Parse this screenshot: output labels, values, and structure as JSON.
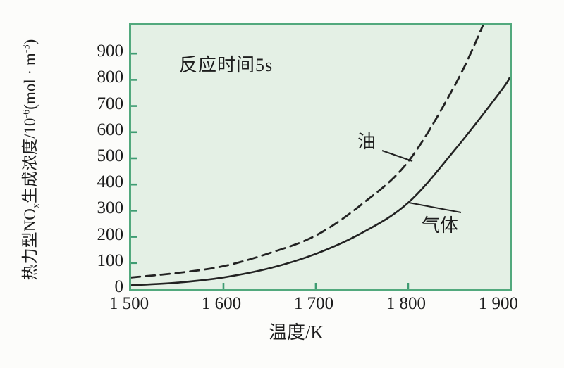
{
  "chart_data": {
    "type": "line",
    "title": "",
    "annotation": "反应时间5s",
    "xlabel": "温度/K",
    "ylabel": "热力型NOx生成浓度/10-6(mol·m-3)",
    "ylabel_parts": [
      {
        "t": "text",
        "v": "热力型NO"
      },
      {
        "t": "sub",
        "v": "x"
      },
      {
        "t": "text",
        "v": "生成浓度/10"
      },
      {
        "t": "sup",
        "v": "-6"
      },
      {
        "t": "text",
        "v": "(mol · m"
      },
      {
        "t": "sup",
        "v": "-3"
      },
      {
        "t": "text",
        "v": ")"
      }
    ],
    "x_axis": {
      "min": 1500,
      "max": 1910,
      "ticks": [
        {
          "value": 1500,
          "label": "1 500"
        },
        {
          "value": 1600,
          "label": "1 600"
        },
        {
          "value": 1700,
          "label": "1 700"
        },
        {
          "value": 1800,
          "label": "1 800"
        },
        {
          "value": 1900,
          "label": "1 900"
        }
      ],
      "tick_marks": [
        1600,
        1700,
        1800
      ]
    },
    "y_axis": {
      "min": 0,
      "max": 1008,
      "ticks": [
        {
          "value": 0,
          "label": "0"
        },
        {
          "value": 100,
          "label": "100"
        },
        {
          "value": 200,
          "label": "200"
        },
        {
          "value": 300,
          "label": "300"
        },
        {
          "value": 400,
          "label": "400"
        },
        {
          "value": 500,
          "label": "500"
        },
        {
          "value": 600,
          "label": "600"
        },
        {
          "value": 700,
          "label": "700"
        },
        {
          "value": 800,
          "label": "800"
        },
        {
          "value": 900,
          "label": "900"
        }
      ],
      "tick_marks": [
        100,
        200,
        300,
        400,
        500,
        600,
        700,
        800,
        900
      ]
    },
    "series": [
      {
        "name": "油",
        "line_style": "dashed",
        "points": [
          [
            1500,
            45
          ],
          [
            1550,
            62
          ],
          [
            1600,
            88
          ],
          [
            1650,
            138
          ],
          [
            1700,
            205
          ],
          [
            1750,
            325
          ],
          [
            1800,
            487
          ],
          [
            1850,
            775
          ],
          [
            1881,
            1008
          ],
          [
            1893,
            1130
          ]
        ]
      },
      {
        "name": "气体",
        "line_style": "solid",
        "points": [
          [
            1500,
            15
          ],
          [
            1550,
            25
          ],
          [
            1600,
            45
          ],
          [
            1650,
            80
          ],
          [
            1700,
            135
          ],
          [
            1750,
            215
          ],
          [
            1800,
            330
          ],
          [
            1850,
            530
          ],
          [
            1900,
            755
          ],
          [
            1910,
            808
          ]
        ]
      }
    ],
    "legend": "inline-labels",
    "grid": false,
    "colors": {
      "page_bg": "#fcfcfa",
      "plot_bg": "#e4f0e5",
      "plot_border": "#52a97d",
      "tick_mark": "#3e9c72",
      "curve": "#222222",
      "text": "#1c1c1c"
    }
  }
}
